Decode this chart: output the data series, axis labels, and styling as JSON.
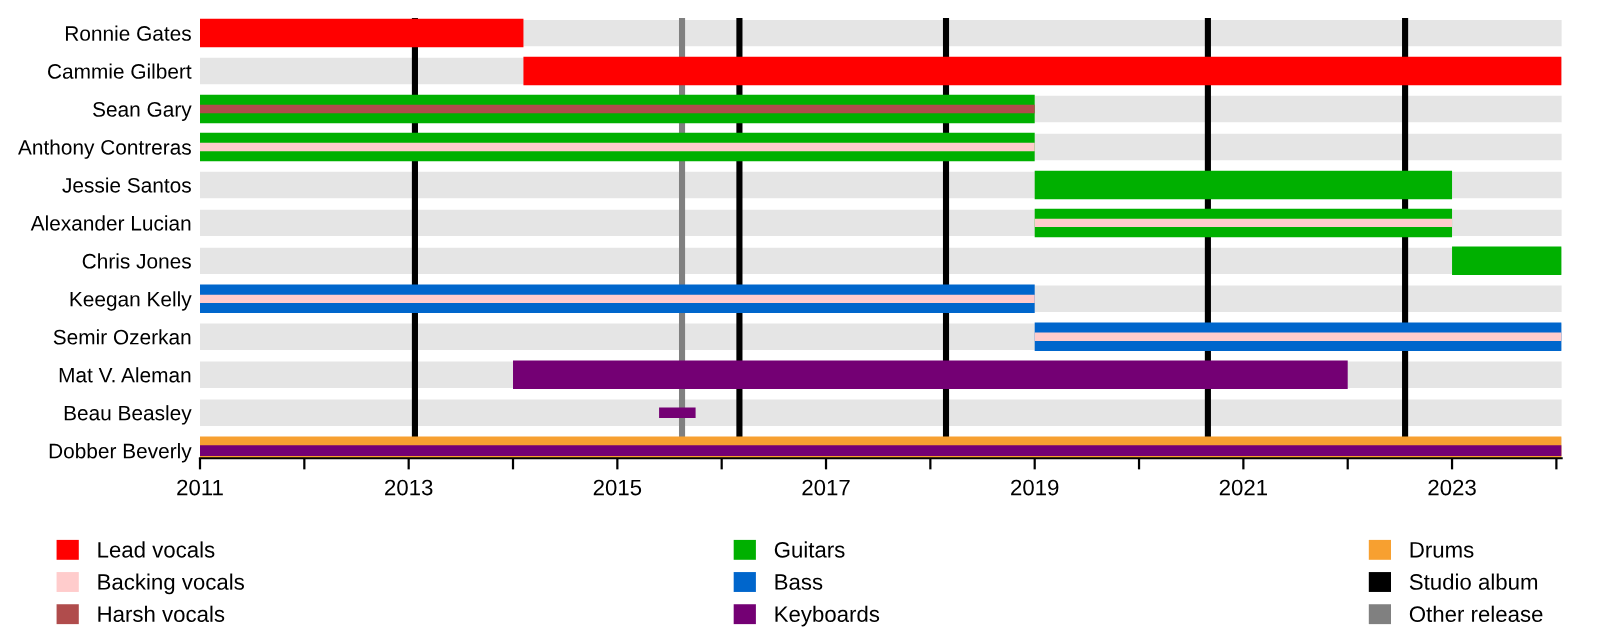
{
  "chart_data": {
    "type": "bar",
    "orientation": "horizontal",
    "categories": [
      "Ronnie Gates",
      "Cammie Gilbert",
      "Sean Gary",
      "Anthony Contreras",
      "Jessie Santos",
      "Alexander Lucian",
      "Chris Jones",
      "Keegan Kelly",
      "Semir Ozerkan",
      "Mat V. Aleman",
      "Beau Beasley",
      "Dobber Beverly"
    ],
    "series": [
      {
        "name": "Lead vocals",
        "color": "#ff0000",
        "base": [
          2011,
          2014.1,
          null,
          null,
          null,
          null,
          null,
          null,
          null,
          null,
          null,
          null
        ],
        "values": [
          3.1,
          9.95,
          null,
          null,
          null,
          null,
          null,
          null,
          null,
          null,
          null,
          null
        ]
      },
      {
        "name": "Backing vocals",
        "color": "#ffcccc",
        "base": [
          null,
          null,
          null,
          2011,
          null,
          2019,
          null,
          2011,
          2019,
          null,
          null,
          null
        ],
        "values": [
          null,
          null,
          null,
          8,
          null,
          4,
          null,
          8,
          5.05,
          null,
          null,
          null
        ]
      },
      {
        "name": "Harsh vocals",
        "color": "#b04c4c",
        "base": [
          null,
          null,
          2011,
          null,
          null,
          null,
          null,
          null,
          null,
          null,
          null,
          null
        ],
        "values": [
          null,
          null,
          8,
          null,
          null,
          null,
          null,
          null,
          null,
          null,
          null,
          null
        ]
      },
      {
        "name": "Guitars",
        "color": "#00b000",
        "base": [
          null,
          null,
          2011,
          2011,
          2019,
          2019,
          2023,
          null,
          null,
          null,
          null,
          null
        ],
        "values": [
          null,
          null,
          8,
          8,
          4,
          4,
          1.05,
          null,
          null,
          null,
          null,
          null
        ]
      },
      {
        "name": "Bass",
        "color": "#0066cc",
        "base": [
          null,
          null,
          null,
          null,
          null,
          null,
          null,
          2011,
          2019,
          null,
          null,
          null
        ],
        "values": [
          null,
          null,
          null,
          null,
          null,
          null,
          null,
          8,
          5.05,
          null,
          null,
          null
        ]
      },
      {
        "name": "Keyboards",
        "color": "#740074",
        "base": [
          null,
          null,
          null,
          null,
          null,
          null,
          null,
          null,
          null,
          2014,
          null,
          null
        ],
        "values": [
          null,
          null,
          null,
          null,
          null,
          null,
          null,
          null,
          null,
          8,
          null,
          null
        ]
      },
      {
        "name": "Drums",
        "color": "#f7a030",
        "base": [
          null,
          null,
          null,
          null,
          null,
          null,
          null,
          null,
          null,
          null,
          null,
          2011
        ],
        "values": [
          null,
          null,
          null,
          null,
          null,
          null,
          null,
          null,
          null,
          null,
          null,
          13.05
        ]
      },
      {
        "color": "#740074",
        "base": [
          null,
          null,
          null,
          null,
          null,
          null,
          null,
          null,
          null,
          null,
          2015.4,
          2011
        ],
        "values": [
          null,
          null,
          null,
          null,
          null,
          null,
          null,
          null,
          null,
          null,
          0.35,
          13.05
        ]
      }
    ],
    "ref_lines": [
      {
        "axis": "x",
        "value": 2013.06,
        "label": "Studio album",
        "color": "#000000"
      },
      {
        "axis": "x",
        "value": 2016.17,
        "color": "#000000"
      },
      {
        "axis": "x",
        "value": 2018.15,
        "color": "#000000"
      },
      {
        "axis": "x",
        "value": 2020.66,
        "color": "#000000"
      },
      {
        "axis": "x",
        "value": 2022.55,
        "color": "#000000"
      },
      {
        "axis": "x",
        "value": 2015.62,
        "label": "Other release",
        "color": "#808080"
      }
    ],
    "xlim": [
      2011,
      2024.05
    ],
    "xticks": [
      2011,
      {
        "value": 2012,
        "label": null
      },
      2013,
      {
        "value": 2014,
        "label": null
      },
      2015,
      {
        "value": 2016,
        "label": null
      },
      2017,
      {
        "value": 2018,
        "label": null
      },
      2019,
      {
        "value": 2020,
        "label": null
      },
      2021,
      {
        "value": 2022,
        "label": null
      },
      2023,
      {
        "value": 2024,
        "label": null
      }
    ],
    "grid": "y",
    "legend": "bottom"
  }
}
